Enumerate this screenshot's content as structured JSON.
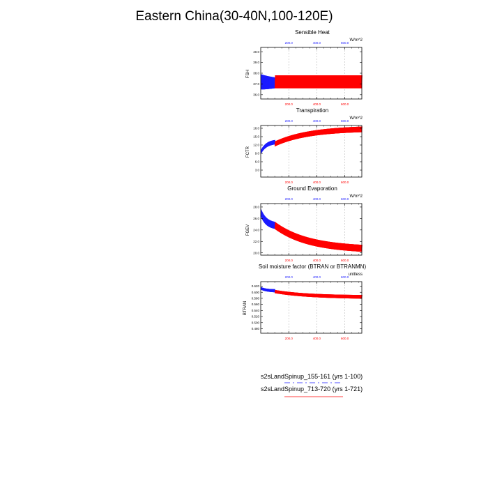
{
  "figure": {
    "title": "Eastern China(30-40N,100-120E)"
  },
  "colors": {
    "run1": "#1a1aff",
    "run2": "#ff0000",
    "grid": "#aaaaaa"
  },
  "legend": {
    "run1_label": "s2sLandSpinup_155-161 (yrs 1-100)",
    "run2_label": "s2sLandSpinup_713-720 (yrs 1-721)"
  },
  "chart_data": [
    {
      "id": "fsh",
      "type": "line",
      "title": "Sensible Heat",
      "ylabel": "FSH",
      "units": "W/m^2",
      "xlim": [
        0,
        721
      ],
      "ylim": [
        35.6,
        40.4
      ],
      "yticks": [
        36.0,
        37.0,
        38.0,
        39.0,
        40.0
      ],
      "ytick_labels": [
        "36.0",
        "37.0",
        "38.0",
        "39.0",
        "40.0"
      ],
      "xticks_top": [
        "200.0",
        "400.0",
        "600.0"
      ],
      "xticks_bottom": [
        "200.0",
        "400.0",
        "600.0"
      ],
      "series": [
        {
          "name": "s2sLandSpinup_155-161 (yrs 1-100)",
          "x_range": [
            0,
            100
          ],
          "start_mean": 37.2,
          "end_mean": 37.1,
          "amp_start": 0.7,
          "amp_end": 0.5
        },
        {
          "name": "s2sLandSpinup_713-720 (yrs 1-721)",
          "x_range": [
            0,
            721
          ],
          "start_mean": 37.2,
          "end_mean": 37.2,
          "amp_start": 0.6,
          "amp_end": 0.6
        }
      ]
    },
    {
      "id": "fctr",
      "type": "line",
      "title": "Transpiration",
      "ylabel": "FCTR",
      "units": "W/m^2",
      "xlim": [
        0,
        721
      ],
      "ylim": [
        0.5,
        19.0
      ],
      "yticks": [
        3.0,
        6.0,
        9.0,
        12.0,
        15.0,
        18.0
      ],
      "ytick_labels": [
        "3.0",
        "6.0",
        "9.0",
        "12.0",
        "15.0",
        "18.0"
      ],
      "xticks_top": [
        "200.0",
        "400.0",
        "600.0"
      ],
      "xticks_bottom": [
        "200.0",
        "400.0",
        "600.0"
      ],
      "series": [
        {
          "name": "s2sLandSpinup_155-161 (yrs 1-100)",
          "x_range": [
            0,
            100
          ],
          "start_mean": 9.5,
          "end_mean": 13.0,
          "amp_start": 0.8,
          "amp_end": 0.8
        },
        {
          "name": "s2sLandSpinup_713-720 (yrs 1-721)",
          "x_range": [
            0,
            721
          ],
          "start_mean": 9.5,
          "end_mean": 17.6,
          "amp_start": 0.9,
          "amp_end": 1.0
        }
      ]
    },
    {
      "id": "fgev",
      "type": "line",
      "title": "Ground Evaporation",
      "ylabel": "FGEV",
      "units": "W/m^2",
      "xlim": [
        0,
        721
      ],
      "ylim": [
        19.6,
        28.6
      ],
      "yticks": [
        20.0,
        22.0,
        24.0,
        26.0,
        28.0
      ],
      "ytick_labels": [
        "20.0",
        "22.0",
        "24.0",
        "26.0",
        "28.0"
      ],
      "xticks_top": [
        "200.0",
        "400.0",
        "600.0"
      ],
      "xticks_bottom": [
        "200.0",
        "400.0",
        "600.0"
      ],
      "series": [
        {
          "name": "s2sLandSpinup_155-161 (yrs 1-100)",
          "x_range": [
            0,
            100
          ],
          "start_mean": 27.0,
          "end_mean": 24.8,
          "amp_start": 0.6,
          "amp_end": 0.6
        },
        {
          "name": "s2sLandSpinup_713-720 (yrs 1-721)",
          "x_range": [
            0,
            721
          ],
          "start_mean": 27.0,
          "end_mean": 20.8,
          "amp_start": 0.6,
          "amp_end": 0.6
        }
      ]
    },
    {
      "id": "btran",
      "type": "line",
      "title": "Soil moisture factor (BTRAN or BTRANMN)",
      "ylabel": "BTRAN",
      "units": "unitless",
      "xlim": [
        0,
        721
      ],
      "ylim": [
        0.465,
        0.635
      ],
      "yticks": [
        0.48,
        0.5,
        0.52,
        0.54,
        0.56,
        0.58,
        0.6,
        0.62
      ],
      "ytick_labels": [
        "0.480",
        "0.500",
        "0.520",
        "0.540",
        "0.560",
        "0.580",
        "0.600",
        "0.620"
      ],
      "xticks_top": [
        "200.0",
        "400.0",
        "600.0"
      ],
      "xticks_bottom": [
        "200.0",
        "400.0",
        "600.0"
      ],
      "series": [
        {
          "name": "s2sLandSpinup_155-161 (yrs 1-100)",
          "x_range": [
            0,
            100
          ],
          "start_mean": 0.613,
          "end_mean": 0.605,
          "amp_start": 0.004,
          "amp_end": 0.005
        },
        {
          "name": "s2sLandSpinup_713-720 (yrs 1-721)",
          "x_range": [
            0,
            721
          ],
          "start_mean": 0.612,
          "end_mean": 0.585,
          "amp_start": 0.005,
          "amp_end": 0.006
        }
      ]
    }
  ]
}
